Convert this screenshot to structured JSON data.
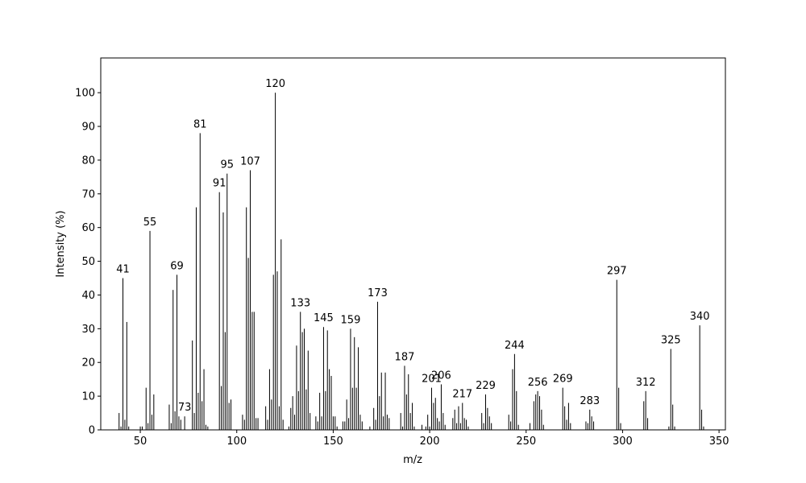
{
  "chart_data": {
    "type": "stem",
    "x_label": "m/z",
    "y_label": "Intensity (%)",
    "color": "#000000",
    "xlim": [
      29.5,
      353.3
    ],
    "ylim": [
      0,
      110.3
    ],
    "xticks": [
      50,
      100,
      150,
      200,
      250,
      300,
      350
    ],
    "yticks": [
      0,
      10,
      20,
      30,
      40,
      50,
      60,
      70,
      80,
      90,
      100
    ],
    "x": [
      39,
      40,
      41,
      42,
      43,
      44,
      50,
      51,
      53,
      54,
      55,
      56,
      57,
      65,
      66,
      67,
      68,
      69,
      70,
      71,
      73,
      77,
      78,
      79,
      80,
      81,
      82,
      83,
      84,
      85,
      91,
      92,
      93,
      94,
      95,
      96,
      97,
      103,
      104,
      105,
      106,
      107,
      108,
      109,
      110,
      111,
      115,
      116,
      117,
      118,
      119,
      120,
      121,
      122,
      123,
      124,
      127,
      128,
      129,
      130,
      131,
      132,
      133,
      134,
      135,
      136,
      137,
      138,
      141,
      142,
      143,
      144,
      145,
      146,
      147,
      148,
      149,
      150,
      151,
      152,
      155,
      156,
      157,
      158,
      159,
      160,
      161,
      162,
      163,
      164,
      165,
      169,
      171,
      172,
      173,
      174,
      175,
      176,
      177,
      178,
      179,
      185,
      186,
      187,
      188,
      189,
      190,
      191,
      192,
      196,
      198,
      199,
      200,
      201,
      202,
      203,
      204,
      205,
      206,
      207,
      208,
      212,
      213,
      214,
      215,
      216,
      217,
      218,
      219,
      220,
      227,
      228,
      229,
      230,
      231,
      232,
      241,
      242,
      243,
      244,
      245,
      246,
      252,
      254,
      255,
      256,
      257,
      258,
      259,
      269,
      270,
      271,
      272,
      273,
      281,
      282,
      283,
      284,
      285,
      297,
      298,
      299,
      311,
      312,
      313,
      324,
      325,
      326,
      327,
      340,
      341,
      342
    ],
    "values": [
      5,
      1,
      45,
      3,
      32,
      1,
      1,
      1,
      12.5,
      2,
      59,
      4.5,
      10.5,
      7.5,
      2,
      41.5,
      5.5,
      46,
      4,
      3,
      4,
      26.5,
      5,
      66,
      11,
      88,
      8.5,
      18,
      1.5,
      1,
      70.5,
      13,
      64.5,
      29,
      76,
      8,
      9,
      4.5,
      3,
      66,
      51,
      77,
      35,
      35,
      3.5,
      3.5,
      7,
      3,
      18,
      9,
      46,
      100,
      47,
      7,
      56.5,
      3,
      1,
      6.5,
      10,
      4.5,
      25,
      11.5,
      35,
      29,
      30,
      12,
      23.5,
      5,
      4,
      2.5,
      11,
      4,
      30.5,
      11.5,
      29.5,
      18,
      16,
      4,
      4,
      1,
      2.5,
      2.5,
      9,
      3.5,
      30,
      12.5,
      27.5,
      12.5,
      24.5,
      4.5,
      2.5,
      1,
      6.5,
      3,
      38,
      10,
      17,
      4,
      17,
      4.5,
      3.5,
      5,
      1,
      19,
      10.5,
      16.5,
      5,
      8,
      1,
      1.5,
      1,
      4.5,
      1,
      12.5,
      8,
      9.5,
      3.5,
      2.5,
      13.5,
      5,
      1.5,
      3.5,
      6,
      2,
      7,
      2,
      8,
      3.5,
      3,
      1,
      5,
      2,
      10.5,
      6.5,
      4,
      2,
      4.5,
      2.5,
      18,
      22.5,
      11.5,
      1.5,
      2,
      8.5,
      10.5,
      11.5,
      10,
      6,
      1.5,
      12.5,
      7,
      3,
      8,
      2,
      2.5,
      2,
      6,
      4,
      2.5,
      44.5,
      12.5,
      2,
      8.5,
      11.5,
      3.5,
      1,
      24,
      7.5,
      1,
      31,
      6,
      1
    ],
    "peak_labels": [
      41,
      55,
      69,
      73,
      81,
      91,
      95,
      107,
      120,
      133,
      145,
      159,
      173,
      187,
      201,
      206,
      217,
      229,
      244,
      256,
      269,
      283,
      297,
      312,
      325,
      340
    ]
  }
}
